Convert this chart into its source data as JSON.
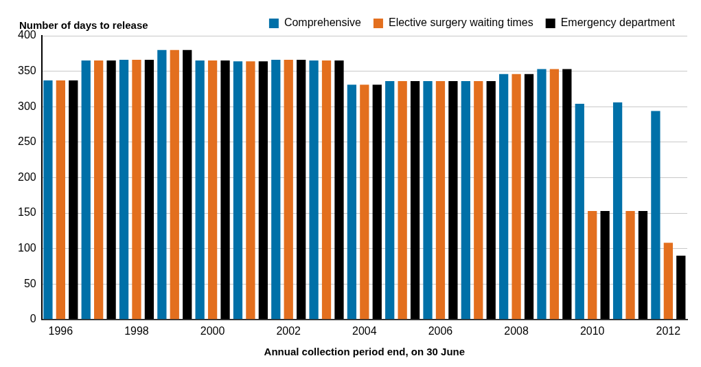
{
  "chart_data": {
    "type": "bar",
    "ylabel": "Number of days to release",
    "xlabel": "Annual collection period end, on 30 June",
    "categories": [
      "1996",
      null,
      "1998",
      null,
      "2000",
      null,
      "2002",
      null,
      "2004",
      null,
      "2006",
      null,
      "2008",
      null,
      "2010",
      null,
      "2012"
    ],
    "series": [
      {
        "name": "Comprehensive",
        "color": "#0070a8",
        "values": [
          337,
          365,
          366,
          380,
          365,
          364,
          366,
          365,
          331,
          336,
          336,
          336,
          346,
          353,
          304,
          306,
          294
        ]
      },
      {
        "name": "Elective surgery waiting times",
        "color": "#e36f1e",
        "values": [
          337,
          365,
          366,
          380,
          365,
          364,
          366,
          365,
          331,
          336,
          336,
          336,
          346,
          353,
          153,
          153,
          108
        ]
      },
      {
        "name": "Emergency department",
        "color": "#000000",
        "values": [
          337,
          365,
          366,
          380,
          365,
          364,
          366,
          365,
          331,
          336,
          336,
          336,
          346,
          353,
          153,
          153,
          90
        ]
      }
    ],
    "ylim": [
      0,
      400
    ],
    "yticks": [
      0,
      50,
      100,
      150,
      200,
      250,
      300,
      350,
      400
    ],
    "grid": "y",
    "legend": "top right"
  }
}
